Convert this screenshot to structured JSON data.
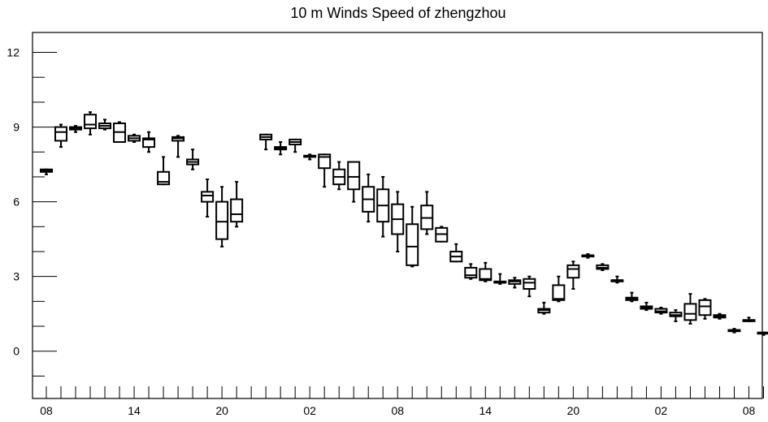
{
  "chart_data": {
    "type": "box",
    "title": "10 m Winds Speed of zhengzhou",
    "xlabel": "",
    "ylabel": "",
    "ylim": [
      -1.9,
      12.8
    ],
    "y_ticks": [
      0,
      3,
      6,
      9,
      12
    ],
    "x_tick_labels": [
      "08",
      "14",
      "20",
      "02",
      "08",
      "14",
      "20",
      "02",
      "08"
    ],
    "time_step_hours": 1,
    "grid": false,
    "boxes": [
      {
        "t": 0,
        "min": 7.1,
        "q1": 7.2,
        "median": 7.25,
        "q3": 7.3,
        "max": 7.3
      },
      {
        "t": 1,
        "min": 8.2,
        "q1": 8.45,
        "median": 8.8,
        "q3": 9.0,
        "max": 9.1
      },
      {
        "t": 2,
        "min": 8.8,
        "q1": 8.9,
        "median": 8.95,
        "q3": 9.0,
        "max": 9.05
      },
      {
        "t": 3,
        "min": 8.7,
        "q1": 8.95,
        "median": 9.1,
        "q3": 9.5,
        "max": 9.6
      },
      {
        "t": 4,
        "min": 8.9,
        "q1": 8.95,
        "median": 9.05,
        "q3": 9.15,
        "max": 9.3
      },
      {
        "t": 5,
        "min": 8.4,
        "q1": 8.4,
        "median": 8.8,
        "q3": 9.15,
        "max": 9.2
      },
      {
        "t": 6,
        "min": 8.4,
        "q1": 8.45,
        "median": 8.55,
        "q3": 8.65,
        "max": 8.7
      },
      {
        "t": 7,
        "min": 8.0,
        "q1": 8.2,
        "median": 8.5,
        "q3": 8.55,
        "max": 8.8
      },
      {
        "t": 8,
        "min": 6.7,
        "q1": 6.7,
        "median": 6.8,
        "q3": 7.2,
        "max": 7.8
      },
      {
        "t": 9,
        "min": 7.8,
        "q1": 8.45,
        "median": 8.55,
        "q3": 8.6,
        "max": 8.65
      },
      {
        "t": 10,
        "min": 7.3,
        "q1": 7.5,
        "median": 7.6,
        "q3": 7.7,
        "max": 8.1
      },
      {
        "t": 11,
        "min": 5.4,
        "q1": 6.0,
        "median": 6.25,
        "q3": 6.4,
        "max": 6.9
      },
      {
        "t": 12,
        "min": 4.2,
        "q1": 4.5,
        "median": 5.2,
        "q3": 6.0,
        "max": 6.6
      },
      {
        "t": 13,
        "min": 5.0,
        "q1": 5.2,
        "median": 5.5,
        "q3": 6.1,
        "max": 6.8
      },
      {
        "t": 15,
        "min": 8.1,
        "q1": 8.5,
        "median": 8.6,
        "q3": 8.7,
        "max": 8.7
      },
      {
        "t": 16,
        "min": 7.9,
        "q1": 8.1,
        "median": 8.15,
        "q3": 8.2,
        "max": 8.4
      },
      {
        "t": 17,
        "min": 8.0,
        "q1": 8.3,
        "median": 8.4,
        "q3": 8.5,
        "max": 8.5
      },
      {
        "t": 18,
        "min": 7.7,
        "q1": 7.8,
        "median": 7.85,
        "q3": 7.85,
        "max": 7.9
      },
      {
        "t": 19,
        "min": 6.6,
        "q1": 7.35,
        "median": 7.8,
        "q3": 7.9,
        "max": 7.9
      },
      {
        "t": 20,
        "min": 6.5,
        "q1": 6.7,
        "median": 7.0,
        "q3": 7.3,
        "max": 7.6
      },
      {
        "t": 21,
        "min": 6.0,
        "q1": 6.5,
        "median": 7.0,
        "q3": 7.6,
        "max": 7.6
      },
      {
        "t": 22,
        "min": 5.2,
        "q1": 5.6,
        "median": 6.1,
        "q3": 6.6,
        "max": 7.1
      },
      {
        "t": 23,
        "min": 4.6,
        "q1": 5.2,
        "median": 5.85,
        "q3": 6.5,
        "max": 7.0
      },
      {
        "t": 24,
        "min": 4.0,
        "q1": 4.7,
        "median": 5.3,
        "q3": 5.9,
        "max": 6.4
      },
      {
        "t": 25,
        "min": 3.4,
        "q1": 3.45,
        "median": 4.2,
        "q3": 5.1,
        "max": 5.8
      },
      {
        "t": 26,
        "min": 4.7,
        "q1": 4.9,
        "median": 5.35,
        "q3": 5.85,
        "max": 6.4
      },
      {
        "t": 27,
        "min": 4.4,
        "q1": 4.4,
        "median": 4.7,
        "q3": 4.95,
        "max": 5.0
      },
      {
        "t": 28,
        "min": 3.6,
        "q1": 3.6,
        "median": 3.8,
        "q3": 4.0,
        "max": 4.3
      },
      {
        "t": 29,
        "min": 2.9,
        "q1": 2.95,
        "median": 3.05,
        "q3": 3.35,
        "max": 3.5
      },
      {
        "t": 30,
        "min": 2.8,
        "q1": 2.85,
        "median": 2.9,
        "q3": 3.3,
        "max": 3.55
      },
      {
        "t": 31,
        "min": 2.7,
        "q1": 2.75,
        "median": 2.75,
        "q3": 2.8,
        "max": 3.1
      },
      {
        "t": 32,
        "min": 2.55,
        "q1": 2.7,
        "median": 2.8,
        "q3": 2.85,
        "max": 2.95
      },
      {
        "t": 33,
        "min": 2.2,
        "q1": 2.5,
        "median": 2.75,
        "q3": 2.9,
        "max": 3.0
      },
      {
        "t": 34,
        "min": 1.5,
        "q1": 1.55,
        "median": 1.65,
        "q3": 1.7,
        "max": 1.95
      },
      {
        "t": 35,
        "min": 2.0,
        "q1": 2.05,
        "median": 2.1,
        "q3": 2.65,
        "max": 3.0
      },
      {
        "t": 36,
        "min": 2.5,
        "q1": 2.95,
        "median": 3.3,
        "q3": 3.45,
        "max": 3.6
      },
      {
        "t": 37,
        "min": 3.75,
        "q1": 3.8,
        "median": 3.85,
        "q3": 3.85,
        "max": 3.9
      },
      {
        "t": 38,
        "min": 3.25,
        "q1": 3.3,
        "median": 3.35,
        "q3": 3.45,
        "max": 3.5
      },
      {
        "t": 39,
        "min": 2.75,
        "q1": 2.8,
        "median": 2.85,
        "q3": 2.85,
        "max": 3.0
      },
      {
        "t": 40,
        "min": 2.0,
        "q1": 2.05,
        "median": 2.1,
        "q3": 2.15,
        "max": 2.35
      },
      {
        "t": 41,
        "min": 1.65,
        "q1": 1.7,
        "median": 1.75,
        "q3": 1.8,
        "max": 1.95
      },
      {
        "t": 42,
        "min": 1.5,
        "q1": 1.55,
        "median": 1.6,
        "q3": 1.7,
        "max": 1.75
      },
      {
        "t": 43,
        "min": 1.2,
        "q1": 1.4,
        "median": 1.45,
        "q3": 1.55,
        "max": 1.65
      },
      {
        "t": 44,
        "min": 1.1,
        "q1": 1.25,
        "median": 1.5,
        "q3": 1.9,
        "max": 2.3
      },
      {
        "t": 45,
        "min": 1.3,
        "q1": 1.45,
        "median": 1.8,
        "q3": 2.05,
        "max": 2.1
      },
      {
        "t": 46,
        "min": 1.3,
        "q1": 1.35,
        "median": 1.4,
        "q3": 1.45,
        "max": 1.5
      },
      {
        "t": 47,
        "min": 0.75,
        "q1": 0.8,
        "median": 0.85,
        "q3": 0.85,
        "max": 0.9
      },
      {
        "t": 48,
        "min": 1.2,
        "q1": 1.2,
        "median": 1.25,
        "q3": 1.25,
        "max": 1.35
      },
      {
        "t": 49,
        "min": 0.65,
        "q1": 0.7,
        "median": 0.72,
        "q3": 0.75,
        "max": 0.75
      }
    ]
  }
}
